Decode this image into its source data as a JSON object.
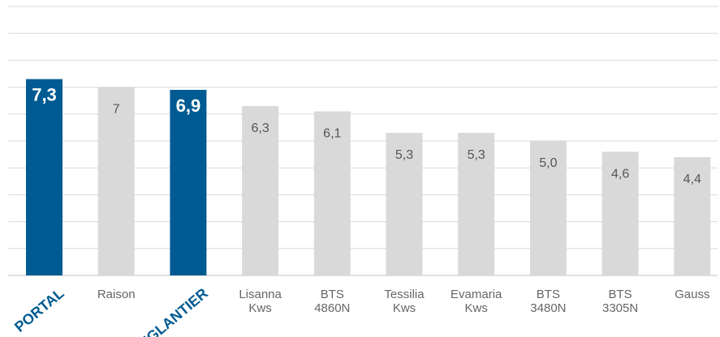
{
  "chart_data": {
    "type": "bar",
    "title": "",
    "xlabel": "",
    "ylabel": "",
    "ylim": [
      0,
      10
    ],
    "grid": true,
    "legend": "none",
    "categories": [
      "PORTAL",
      "Raison",
      "EGLANTIER",
      "Lisanna Kws",
      "BTS 4860N",
      "Tessilia Kws",
      "Evamaria Kws",
      "BTS 3480N",
      "BTS 3305N",
      "Gauss"
    ],
    "category_lines": [
      [
        "PORTAL"
      ],
      [
        "Raison"
      ],
      [
        "EGLANTIER"
      ],
      [
        "Lisanna",
        "Kws"
      ],
      [
        "BTS",
        "4860N"
      ],
      [
        "Tessilia",
        "Kws"
      ],
      [
        "Evamaria",
        "Kws"
      ],
      [
        "BTS",
        "3480N"
      ],
      [
        "BTS",
        "3305N"
      ],
      [
        "Gauss"
      ]
    ],
    "values": [
      7.3,
      7,
      6.9,
      6.3,
      6.1,
      5.3,
      5.3,
      5.0,
      4.6,
      4.4
    ],
    "value_labels": [
      "7,3",
      "7",
      "6,9",
      "6,3",
      "6,1",
      "5,3",
      "5,3",
      "5,0",
      "4,6",
      "4,4"
    ],
    "highlighted": [
      true,
      false,
      true,
      false,
      false,
      false,
      false,
      false,
      false,
      false
    ],
    "colors": {
      "highlight": "#005b92",
      "normal": "#d9d9d9",
      "grid": "#d9d9d9",
      "label": "#666666",
      "value_label": "#555555",
      "highlight_value_label": "#ffffff"
    }
  }
}
